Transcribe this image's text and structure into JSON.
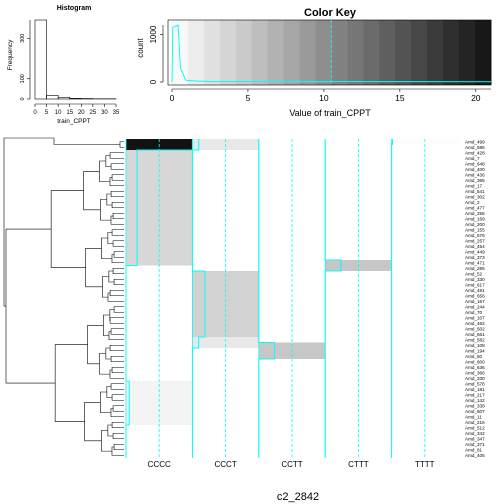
{
  "main_title": "c2_2842",
  "colors": {
    "trace": "#00FFFF",
    "dendrogram": "#000000",
    "heat_low": "#FFFFFF",
    "heat_high": "#000000"
  },
  "histogram": {
    "title": "Histogram",
    "xlabel": "train_CPPT",
    "ylabel": "Frequency",
    "xticks": [
      "0",
      "5",
      "10",
      "15",
      "20",
      "25",
      "30",
      "35"
    ],
    "yticks": [
      "0",
      "100",
      "300"
    ]
  },
  "color_key": {
    "title": "Color Key",
    "xlabel": "Value of train_CPPT",
    "ylabel": "count",
    "xticks": [
      "0",
      "5",
      "10",
      "15",
      "20"
    ],
    "yticks": [
      "0",
      "1000"
    ]
  },
  "chart_data": [
    {
      "type": "bar",
      "title": "Histogram",
      "xlabel": "train_CPPT",
      "ylabel": "Frequency",
      "bin_edges": [
        0,
        5,
        10,
        15,
        20,
        25,
        30,
        35
      ],
      "values": [
        390,
        18,
        8,
        3,
        2,
        1,
        1
      ],
      "xlim": [
        0,
        35
      ],
      "ylim": [
        0,
        400
      ]
    },
    {
      "type": "heatmap",
      "columns": [
        "CCCC",
        "CCCT",
        "CCTT",
        "CTTT",
        "TTTT"
      ],
      "rows": [
        "Amd_499",
        "Amd_586",
        "Amd_428",
        "Amd_7",
        "Amd_648",
        "Amd_400",
        "Amd_436",
        "Amd_365",
        "Amd_17",
        "Amd_541",
        "Amd_302",
        "Amd_2",
        "Amd_477",
        "Amd_256",
        "Amd_169",
        "Amd_200",
        "Amd_155",
        "Amd_576",
        "Amd_257",
        "Amd_454",
        "Amd_449",
        "Amd_373",
        "Amd_471",
        "Amd_285",
        "Amd_52",
        "Amd_330",
        "Amd_617",
        "Amd_491",
        "Amd_656",
        "Amd_167",
        "Amd_244",
        "Amd_70",
        "Amd_107",
        "Amd_462",
        "Amd_502",
        "Amd_661",
        "Amd_582",
        "Amd_108",
        "Amd_194",
        "Amd_60",
        "Amd_600",
        "Amd_636",
        "Amd_366",
        "Amd_330",
        "Amd_578",
        "Amd_181",
        "Amd_217",
        "Amd_142",
        "Amd_338",
        "Amd_607",
        "Amd_11",
        "Amd_216",
        "Amd_512",
        "Amd_342",
        "Amd_347",
        "Amd_371",
        "Amd_81",
        "Amd_405"
      ],
      "value_name": "train_CPPT",
      "range": [
        0,
        21
      ],
      "color_key": {
        "title": "Color Key",
        "xlabel": "Value of train_CPPT",
        "ylabel": "count",
        "xlim": [
          0,
          21
        ],
        "ylim": [
          0,
          1200
        ],
        "density_peak": 1200,
        "midpoint": 10.5
      },
      "blocks": [
        {
          "column": "CCCC",
          "row_range": [
            0,
            1
          ],
          "value": 21
        },
        {
          "column": "CCCC",
          "row_range": [
            2,
            22
          ],
          "value": 3.5
        },
        {
          "column": "CCCC",
          "row_range": [
            23,
            43
          ],
          "value": 0
        },
        {
          "column": "CCCC",
          "row_range": [
            44,
            51
          ],
          "value": 1
        },
        {
          "column": "CCCC",
          "row_range": [
            52,
            57
          ],
          "value": 0
        },
        {
          "column": "CCCT",
          "row_range": [
            0,
            1
          ],
          "value": 2
        },
        {
          "column": "CCCT",
          "row_range": [
            24,
            35
          ],
          "value": 4
        },
        {
          "column": "CCCT",
          "row_range": [
            36,
            37
          ],
          "value": 2
        },
        {
          "column": "CCTT",
          "row_range": [
            37,
            39
          ],
          "value": 5
        },
        {
          "column": "CTTT",
          "row_range": [
            22,
            23
          ],
          "value": 5
        },
        {
          "column": "TTTT",
          "row_range": [
            0,
            0
          ],
          "value": 0.3
        }
      ]
    }
  ]
}
